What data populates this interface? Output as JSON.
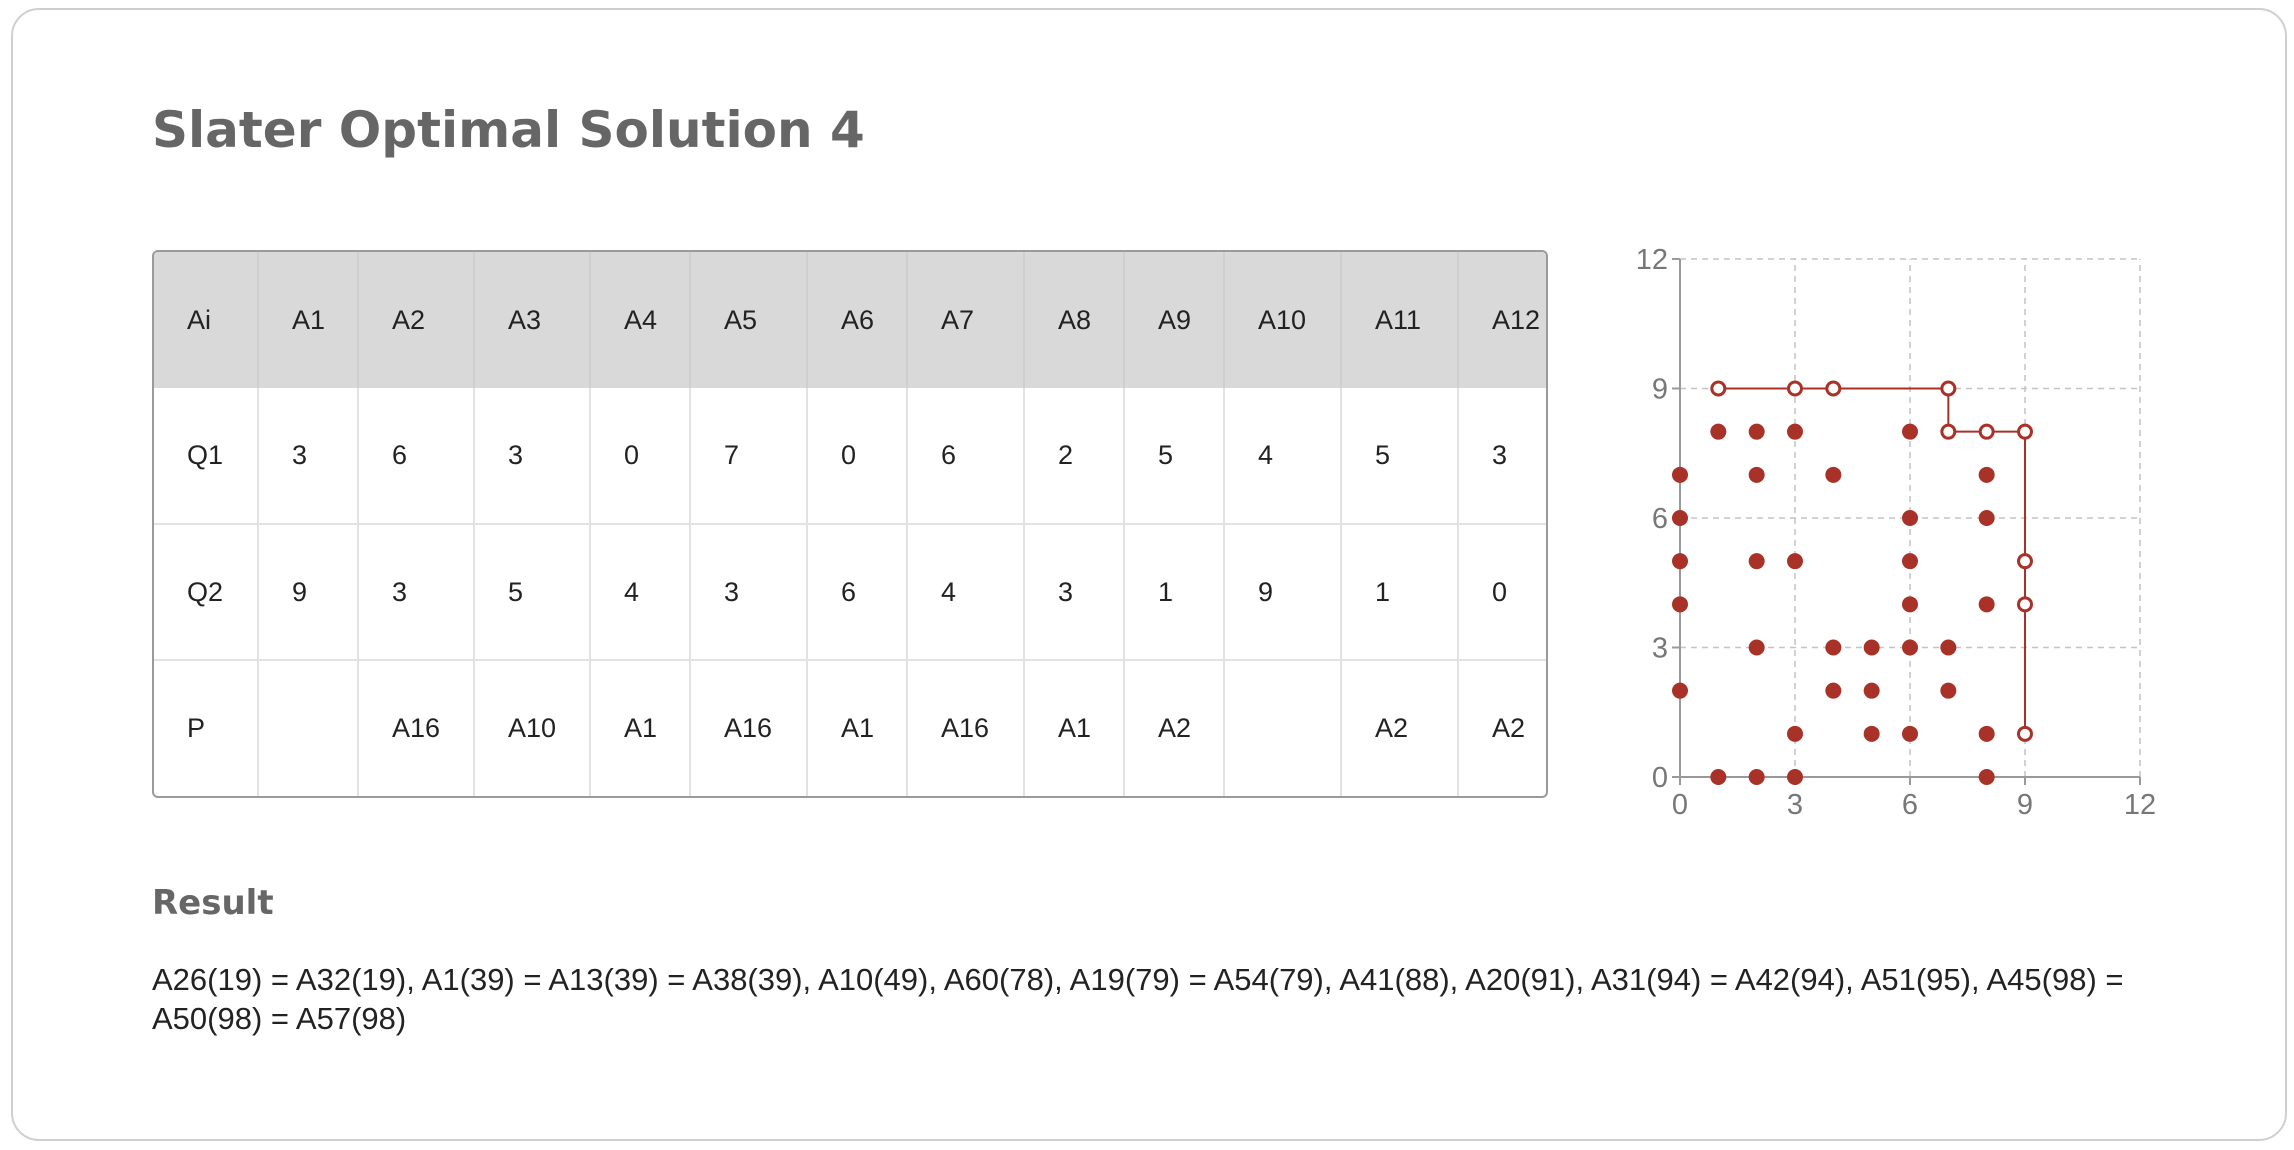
{
  "title": "Slater Optimal Solution 4",
  "table": {
    "headers": [
      "Ai",
      "A1",
      "A2",
      "A3",
      "A4",
      "A5",
      "A6",
      "A7",
      "A8",
      "A9",
      "A10",
      "A11",
      "A12"
    ],
    "rows": [
      [
        "Q1",
        "3",
        "6",
        "3",
        "0",
        "7",
        "0",
        "6",
        "2",
        "5",
        "4",
        "5",
        "3"
      ],
      [
        "Q2",
        "9",
        "3",
        "5",
        "4",
        "3",
        "6",
        "4",
        "3",
        "1",
        "9",
        "1",
        "0"
      ],
      [
        "P",
        "",
        "A16",
        "A10",
        "A1",
        "A16",
        "A1",
        "A16",
        "A1",
        "A2",
        "",
        "A2",
        "A2"
      ]
    ]
  },
  "result": {
    "heading": "Result",
    "text": "A26(19) = A32(19), A1(39) = A13(39) = A38(39), A10(49), A60(78), A19(79) = A54(79), A41(88), A20(91), A31(94) = A42(94), A51(95), A45(98) = A50(98) = A57(98)"
  },
  "chart_data": {
    "type": "scatter",
    "xlim": [
      0,
      12
    ],
    "ylim": [
      0,
      12
    ],
    "xticks": [
      "0",
      "3",
      "6",
      "9",
      "12"
    ],
    "yticks": [
      "0",
      "3",
      "6",
      "9",
      "12"
    ],
    "grid": true,
    "marker_color": "#a83228",
    "filled_points": [
      [
        1,
        8
      ],
      [
        2,
        8
      ],
      [
        3,
        8
      ],
      [
        6,
        8
      ],
      [
        0,
        7
      ],
      [
        2,
        7
      ],
      [
        4,
        7
      ],
      [
        8,
        7
      ],
      [
        0,
        6
      ],
      [
        6,
        6
      ],
      [
        8,
        6
      ],
      [
        0,
        5
      ],
      [
        2,
        5
      ],
      [
        3,
        5
      ],
      [
        6,
        5
      ],
      [
        0,
        4
      ],
      [
        6,
        4
      ],
      [
        8,
        4
      ],
      [
        2,
        3
      ],
      [
        4,
        3
      ],
      [
        5,
        3
      ],
      [
        6,
        3
      ],
      [
        7,
        3
      ],
      [
        0,
        2
      ],
      [
        4,
        2
      ],
      [
        5,
        2
      ],
      [
        7,
        2
      ],
      [
        3,
        1
      ],
      [
        5,
        1
      ],
      [
        6,
        1
      ],
      [
        8,
        1
      ],
      [
        1,
        0
      ],
      [
        2,
        0
      ],
      [
        3,
        0
      ],
      [
        8,
        0
      ]
    ],
    "frontier_points": [
      [
        1,
        9
      ],
      [
        3,
        9
      ],
      [
        4,
        9
      ],
      [
        7,
        9
      ],
      [
        7,
        8
      ],
      [
        8,
        8
      ],
      [
        9,
        8
      ],
      [
        9,
        5
      ],
      [
        9,
        4
      ],
      [
        9,
        1
      ]
    ]
  }
}
